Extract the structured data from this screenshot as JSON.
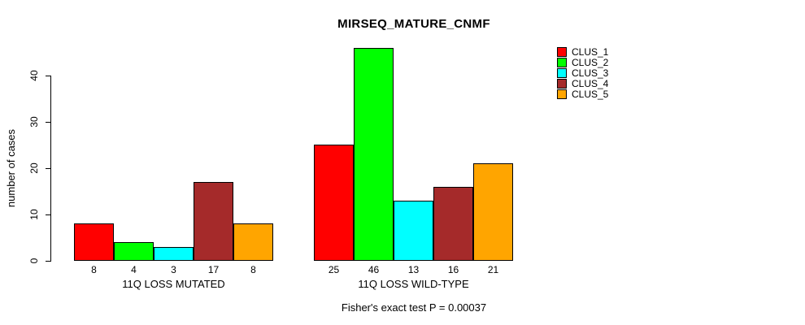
{
  "chart_data": {
    "type": "bar",
    "title": "MIRSEQ_MATURE_CNMF",
    "ylabel": "number of cases",
    "xlabel": "",
    "annotation": "Fisher's exact test P = 0.00037",
    "p_value_text": "P = 0.00037",
    "categories": [
      "11Q LOSS MUTATED",
      "11Q LOSS WILD-TYPE"
    ],
    "series": [
      {
        "name": "CLUS_1",
        "color": "#FF0000",
        "values": [
          8,
          25
        ]
      },
      {
        "name": "CLUS_2",
        "color": "#00FF00",
        "values": [
          4,
          46
        ]
      },
      {
        "name": "CLUS_3",
        "color": "#00FFFF",
        "values": [
          3,
          13
        ]
      },
      {
        "name": "CLUS_4",
        "color": "#A52A2A",
        "values": [
          17,
          16
        ]
      },
      {
        "name": "CLUS_5",
        "color": "#FFA500",
        "values": [
          8,
          21
        ]
      }
    ],
    "y_ticks": [
      0,
      10,
      20,
      30,
      40
    ],
    "ylim": [
      0,
      46
    ],
    "grid": false,
    "legend_position": "top-right",
    "bar_border_color": "#000000",
    "background_color": "#FFFFFF"
  }
}
